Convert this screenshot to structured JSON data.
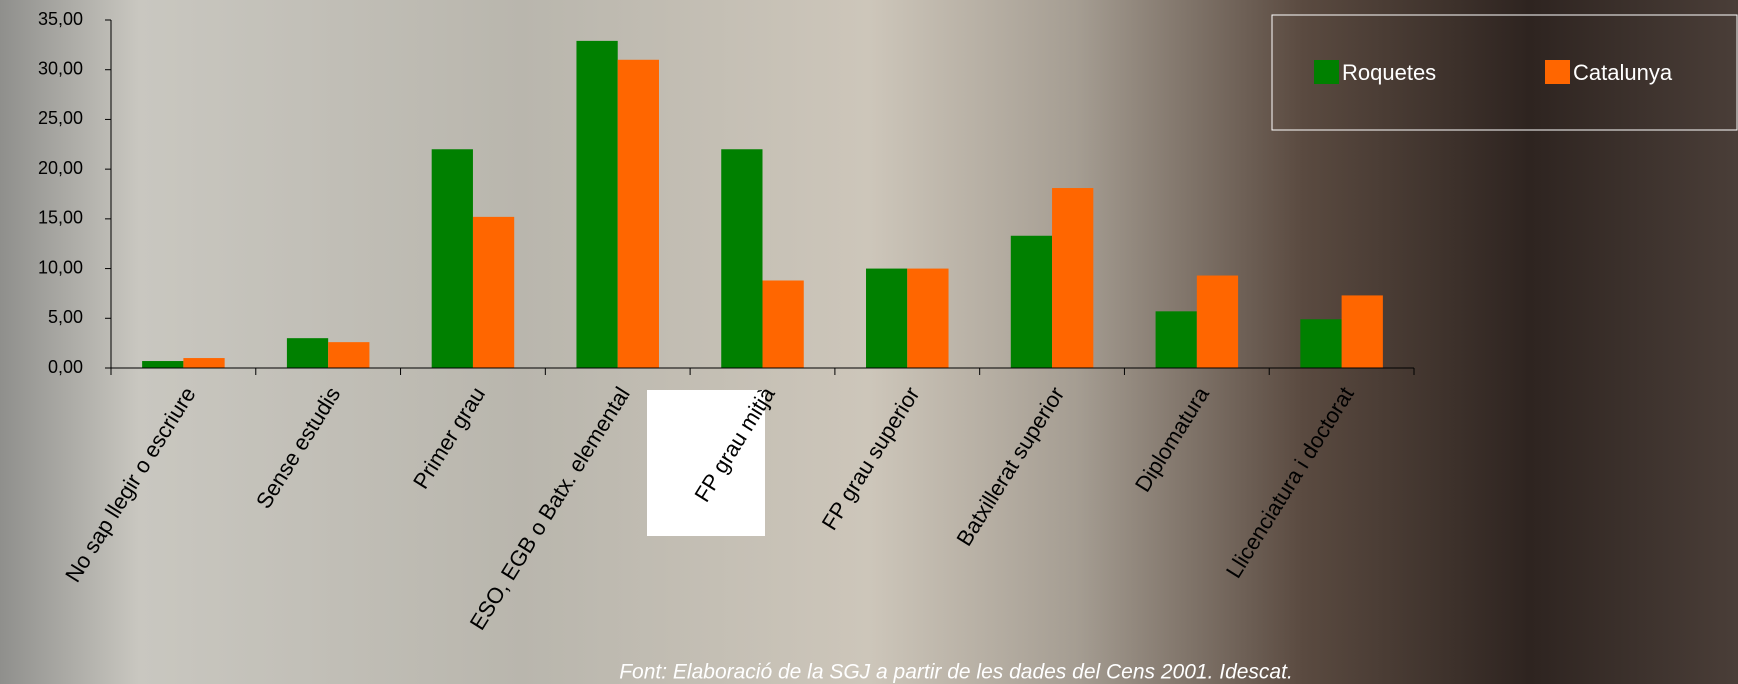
{
  "chart_data": {
    "type": "bar",
    "categories": [
      "No sap llegir o escriure",
      "Sense estudis",
      "Primer grau",
      "ESO, EGB o Batx. elemental",
      "FP grau mitjà",
      "FP grau superior",
      "Batxillerat superior",
      "Diplomatura",
      "Llicenciatura i doctorat"
    ],
    "series": [
      {
        "name": "Roquetes",
        "color": "#008000",
        "values": [
          0.7,
          3.0,
          22.0,
          32.9,
          22.0,
          10.0,
          13.3,
          5.7,
          4.9
        ]
      },
      {
        "name": "Catalunya",
        "color": "#ff6600",
        "values": [
          1.0,
          2.6,
          15.2,
          31.0,
          8.8,
          10.0,
          18.1,
          9.3,
          7.3
        ]
      }
    ],
    "ylim": [
      0,
      35
    ],
    "yticks": [
      {
        "value": 0,
        "label": "0,00"
      },
      {
        "value": 5,
        "label": "5,00"
      },
      {
        "value": 10,
        "label": "10,00"
      },
      {
        "value": 15,
        "label": "15,00"
      },
      {
        "value": 20,
        "label": "20,00"
      },
      {
        "value": 25,
        "label": "25,00"
      },
      {
        "value": 30,
        "label": "30,00"
      },
      {
        "value": 35,
        "label": "35,00"
      }
    ],
    "legend": "top-right",
    "source": "Font: Elaboració de la SGJ a partir de les dades del Cens 2001. Idescat."
  }
}
